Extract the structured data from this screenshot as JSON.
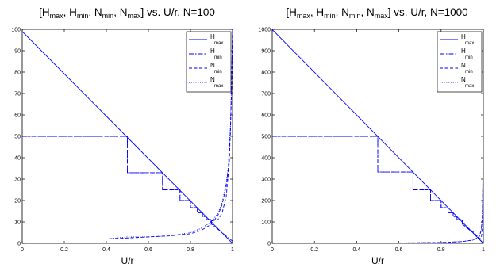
{
  "chart_data": [
    {
      "type": "line",
      "title": "[H_max, H_min, N_min, N_max] vs. U/r, N=100",
      "title_parts": {
        "H": "H",
        "max": "max",
        "min": "min",
        "N": "N",
        "open": "[",
        "sep": ", ",
        "close": "]",
        "suffix": " vs. U/r, N=100"
      },
      "xlabel": "U/r",
      "ylabel": "",
      "xlim": [
        0,
        1
      ],
      "ylim": [
        0,
        100
      ],
      "xticks": [
        "0",
        "0.2",
        "0.4",
        "0.6",
        "0.8",
        "1"
      ],
      "yticks": [
        "0",
        "10",
        "20",
        "30",
        "40",
        "50",
        "60",
        "70",
        "80",
        "90",
        "100"
      ],
      "legend_position": "top-right",
      "grid": false,
      "series": [
        {
          "name": "H_max",
          "label_main": "H",
          "label_sub": "max",
          "style": "solid",
          "x": [
            0,
            1
          ],
          "y": [
            99,
            0
          ]
        },
        {
          "name": "H_min",
          "label_main": "H",
          "label_sub": "min",
          "style": "dashdot",
          "x": [
            0,
            0.5,
            0.5,
            0.667,
            0.667,
            0.75,
            0.75,
            0.8,
            0.8,
            0.833,
            0.833,
            0.857,
            0.857,
            0.875,
            0.875,
            0.9,
            0.9,
            0.95,
            1
          ],
          "y": [
            50,
            50,
            33,
            33,
            25,
            25,
            20,
            20,
            16.7,
            16.7,
            14.3,
            14.3,
            12.5,
            12.5,
            11.1,
            11.1,
            9,
            5,
            1
          ]
        },
        {
          "name": "N_min",
          "label_main": "N",
          "label_sub": "min",
          "style": "dashed",
          "x": [
            0,
            0.5,
            0.5,
            0.667,
            0.667,
            0.75,
            0.75,
            0.8,
            0.8,
            0.833,
            0.833,
            0.857,
            0.857,
            0.875,
            0.875,
            0.9,
            0.9,
            0.93,
            0.95,
            0.97,
            0.985,
            0.995,
            1
          ],
          "y": [
            50,
            50,
            33,
            33,
            25,
            25,
            20,
            20,
            16.7,
            16.7,
            14.3,
            14.3,
            12.5,
            12.5,
            11.1,
            11.1,
            10.5,
            11,
            14,
            22,
            38,
            70,
            100
          ]
        },
        {
          "name": "N_max",
          "label_main": "N",
          "label_sub": "max",
          "style": "dotted",
          "x": [
            0,
            0.2,
            0.4,
            0.5,
            0.6,
            0.7,
            0.8,
            0.85,
            0.9,
            0.93,
            0.95,
            0.97,
            0.98,
            0.99,
            0.995,
            1
          ],
          "y": [
            2,
            2,
            2,
            3,
            3,
            3.5,
            5,
            7,
            10,
            14,
            19,
            28,
            36,
            55,
            75,
            100
          ]
        }
      ],
      "extra_series": [
        {
          "style": "dashed",
          "x": [
            0,
            0.2,
            0.4,
            0.5,
            0.6,
            0.7,
            0.8,
            0.85,
            0.9,
            0.93,
            0.95,
            0.97,
            0.98,
            0.99,
            0.995,
            1
          ],
          "y": [
            2,
            2,
            2,
            2.5,
            3,
            3.5,
            4.5,
            6,
            9,
            13,
            18,
            27,
            35,
            52,
            72,
            100
          ]
        }
      ]
    },
    {
      "type": "line",
      "title": "[H_max, H_min, N_min, N_max] vs. U/r, N=1000",
      "title_parts": {
        "H": "H",
        "max": "max",
        "min": "min",
        "N": "N",
        "open": "[",
        "sep": ", ",
        "close": "]",
        "suffix": " vs. U/r, N=1000"
      },
      "xlabel": "U/r",
      "ylabel": "",
      "xlim": [
        0,
        1
      ],
      "ylim": [
        0,
        1000
      ],
      "xticks": [
        "0",
        "0.2",
        "0.4",
        "0.6",
        "0.8",
        "1"
      ],
      "yticks": [
        "0",
        "100",
        "200",
        "300",
        "400",
        "500",
        "600",
        "700",
        "800",
        "900",
        "1000"
      ],
      "legend_position": "top-right",
      "grid": false,
      "series": [
        {
          "name": "H_max",
          "label_main": "H",
          "label_sub": "max",
          "style": "solid",
          "x": [
            0,
            1
          ],
          "y": [
            999,
            0
          ]
        },
        {
          "name": "H_min",
          "label_main": "H",
          "label_sub": "min",
          "style": "dashdot",
          "x": [
            0,
            0.5,
            0.5,
            0.667,
            0.667,
            0.75,
            0.75,
            0.8,
            0.8,
            0.833,
            0.833,
            0.857,
            0.857,
            0.875,
            0.875,
            0.9,
            0.9,
            0.95,
            1
          ],
          "y": [
            500,
            500,
            333,
            333,
            250,
            250,
            200,
            200,
            167,
            167,
            143,
            143,
            125,
            125,
            111,
            111,
            90,
            50,
            1
          ]
        },
        {
          "name": "N_min",
          "label_main": "N",
          "label_sub": "min",
          "style": "dashed",
          "x": [
            0,
            0.5,
            0.5,
            0.667,
            0.667,
            0.75,
            0.75,
            0.8,
            0.8,
            0.833,
            0.833,
            0.857,
            0.857,
            0.875,
            0.875,
            0.9,
            0.9,
            0.95,
            0.98,
            0.99,
            0.997,
            1
          ],
          "y": [
            500,
            500,
            333,
            333,
            250,
            250,
            200,
            200,
            167,
            167,
            143,
            143,
            125,
            125,
            111,
            111,
            90,
            55,
            25,
            20,
            80,
            1000
          ]
        },
        {
          "name": "N_max",
          "label_main": "N",
          "label_sub": "max",
          "style": "dotted",
          "x": [
            0,
            0.4,
            0.6,
            0.8,
            0.9,
            0.95,
            0.98,
            0.99,
            0.995,
            0.998,
            1
          ],
          "y": [
            2,
            2,
            2,
            4,
            8,
            15,
            30,
            60,
            120,
            300,
            1000
          ]
        }
      ],
      "extra_series": [
        {
          "style": "dashed",
          "x": [
            0,
            0.4,
            0.6,
            0.8,
            0.9,
            0.95,
            0.98,
            0.99,
            0.995,
            0.998,
            1
          ],
          "y": [
            2,
            2,
            2,
            4,
            8,
            15,
            30,
            60,
            120,
            300,
            1000
          ]
        }
      ]
    }
  ],
  "colors": {
    "line": "#0000ff",
    "axis": "#000000",
    "background": "#ffffff"
  }
}
